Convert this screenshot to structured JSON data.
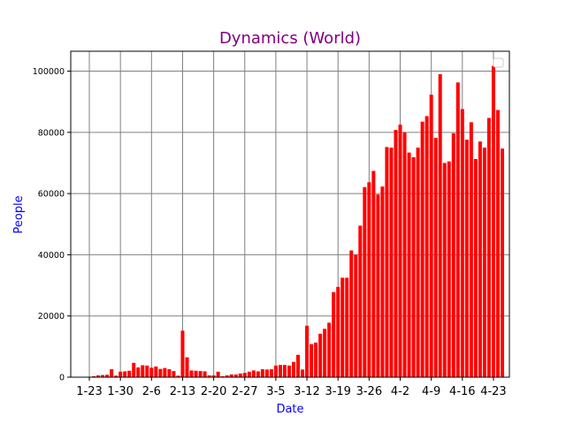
{
  "chart_data": {
    "type": "bar",
    "title": "Dynamics (World)",
    "xlabel": "Date",
    "ylabel": "People",
    "ylim": [
      0,
      106500
    ],
    "y_ticks": [
      0,
      20000,
      40000,
      60000,
      80000,
      100000
    ],
    "x_tick_labels": [
      "1-23",
      "1-30",
      "2-6",
      "2-13",
      "2-20",
      "2-27",
      "3-5",
      "3-12",
      "3-19",
      "3-26",
      "4-2",
      "4-9",
      "4-16",
      "4-23"
    ],
    "x_tick_interval_days": 7,
    "grid": true,
    "legend": "top-right (empty)",
    "colors": {
      "bar": "#ff0000",
      "title": "#800080",
      "axis_label": "#0000ff",
      "grid": "#808080"
    },
    "categories": [
      "1-22",
      "1-23",
      "1-24",
      "1-25",
      "1-26",
      "1-27",
      "1-28",
      "1-29",
      "1-30",
      "1-31",
      "2-1",
      "2-2",
      "2-3",
      "2-4",
      "2-5",
      "2-6",
      "2-7",
      "2-8",
      "2-9",
      "2-10",
      "2-11",
      "2-12",
      "2-13",
      "2-14",
      "2-15",
      "2-16",
      "2-17",
      "2-18",
      "2-19",
      "2-20",
      "2-21",
      "2-22",
      "2-23",
      "2-24",
      "2-25",
      "2-26",
      "2-27",
      "2-28",
      "2-29",
      "3-1",
      "3-2",
      "3-3",
      "3-4",
      "3-5",
      "3-6",
      "3-7",
      "3-8",
      "3-9",
      "3-10",
      "3-11",
      "3-12",
      "3-13",
      "3-14",
      "3-15",
      "3-16",
      "3-17",
      "3-18",
      "3-19",
      "3-20",
      "3-21",
      "3-22",
      "3-23",
      "3-24",
      "3-25",
      "3-26",
      "3-27",
      "3-28",
      "3-29",
      "3-30",
      "3-31",
      "4-1",
      "4-2",
      "4-3",
      "4-4",
      "4-5",
      "4-6",
      "4-7",
      "4-8",
      "4-9",
      "4-10",
      "4-11",
      "4-12",
      "4-13",
      "4-14",
      "4-15",
      "4-16",
      "4-17",
      "4-18",
      "4-19",
      "4-20",
      "4-21",
      "4-22",
      "4-23",
      "4-24",
      "4-25"
    ],
    "values": [
      0,
      100,
      300,
      600,
      700,
      800,
      2600,
      500,
      1800,
      1900,
      2100,
      4700,
      3200,
      3900,
      3800,
      3100,
      3500,
      2700,
      3000,
      2600,
      2000,
      500,
      15200,
      6500,
      2200,
      2100,
      2000,
      1900,
      600,
      600,
      1800,
      300,
      600,
      900,
      900,
      1200,
      1400,
      1800,
      2200,
      1900,
      2600,
      2500,
      2600,
      3800,
      4000,
      4000,
      3800,
      5000,
      7300,
      2500,
      16800,
      10800,
      11300,
      14200,
      15800,
      17800,
      27800,
      29500,
      32500,
      32500,
      41400,
      40000,
      49500,
      62100,
      63700,
      67400,
      59700,
      62300,
      75200,
      75000,
      80800,
      82500,
      80000,
      73400,
      71900,
      75000,
      83500,
      85300,
      92300,
      78200,
      99000,
      70000,
      70500,
      79700,
      96300,
      87600,
      77600,
      83300,
      71300,
      77000,
      75000,
      84700,
      101700,
      87300,
      74700
    ]
  }
}
